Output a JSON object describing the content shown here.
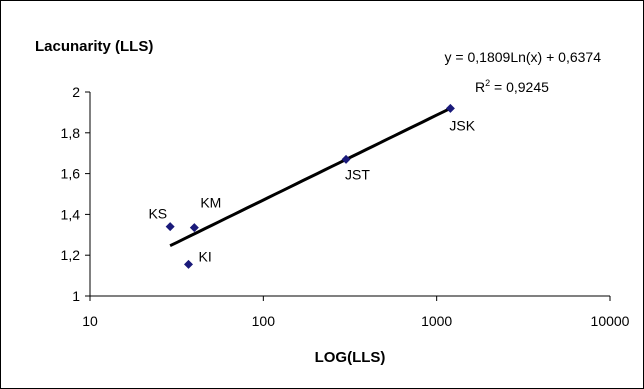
{
  "chart_data": {
    "type": "scatter",
    "xlabel": "LOG(LLS)",
    "ylabel": "Lacunarity (LLS)",
    "x_scale": "log",
    "xlim": [
      10,
      10000
    ],
    "ylim": [
      1,
      2
    ],
    "x_ticks": [
      "10",
      "100",
      "1000",
      "10000"
    ],
    "y_ticks": [
      "1",
      "1,2",
      "1,4",
      "1,6",
      "1,8",
      "2"
    ],
    "grid": false,
    "points": [
      {
        "label": "KS",
        "x": 29,
        "y": 1.34
      },
      {
        "label": "KM",
        "x": 40,
        "y": 1.335
      },
      {
        "label": "KI",
        "x": 37,
        "y": 1.155
      },
      {
        "label": "JST",
        "x": 300,
        "y": 1.67
      },
      {
        "label": "JSK",
        "x": 1200,
        "y": 1.92
      }
    ],
    "trendline": {
      "equation": "y = 0,1809Ln(x) + 0,6374",
      "r2_prefix": "R",
      "r2_exp": "2",
      "r2_value": " = 0,9245",
      "a": 0.1809,
      "b": 0.6374,
      "x_range": [
        29,
        1200
      ]
    },
    "colors": {
      "marker": "#1a1a7a",
      "line": "#000000",
      "axis": "#000000"
    }
  }
}
